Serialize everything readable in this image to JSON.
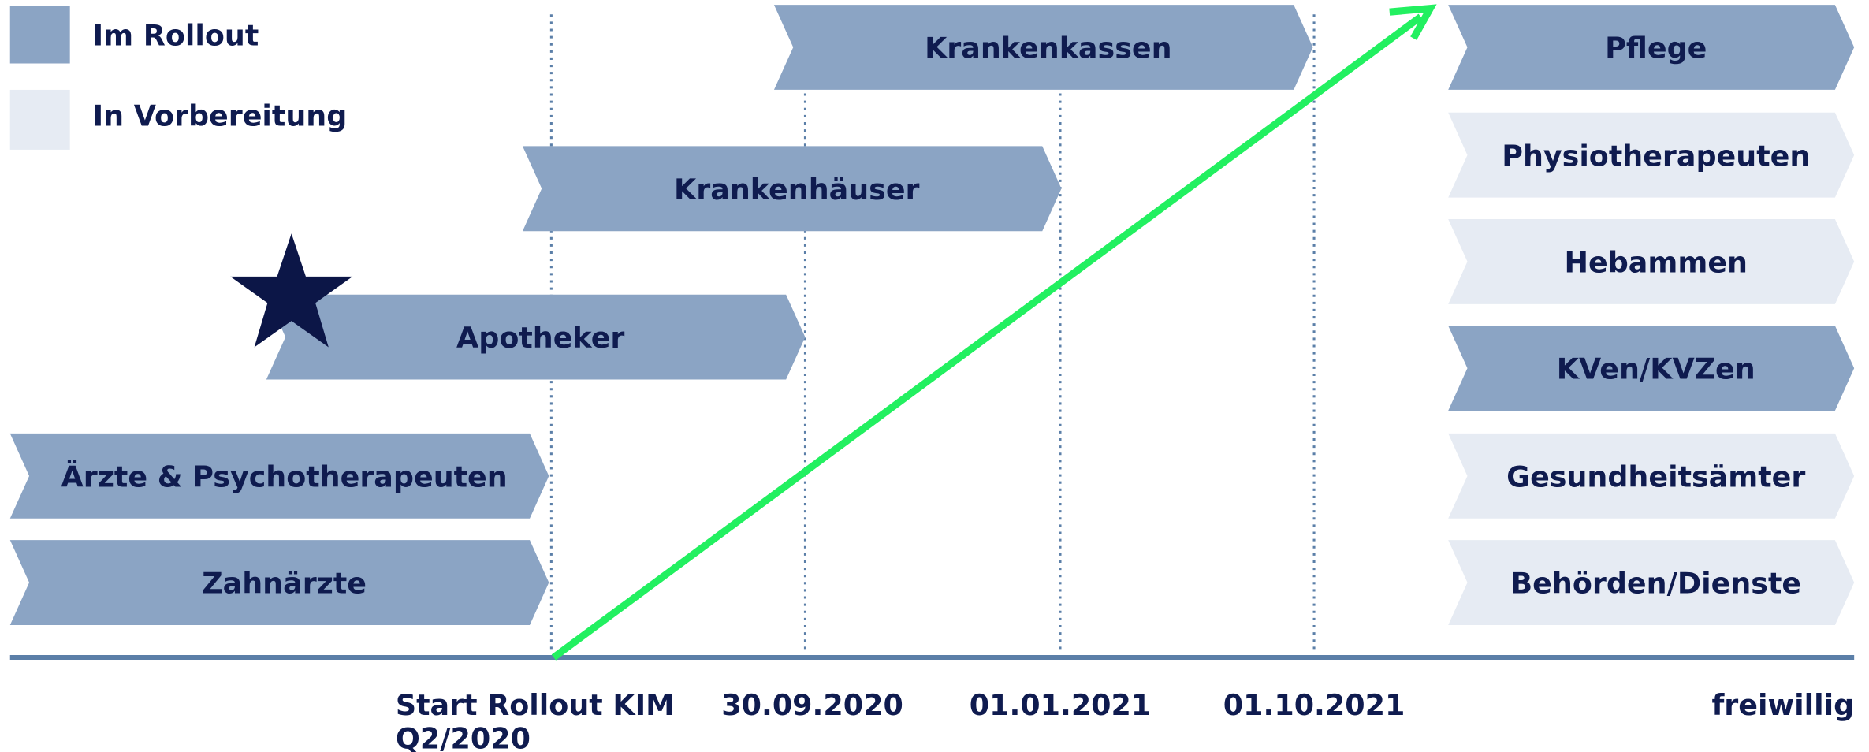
{
  "legend": [
    {
      "label": "Im Rollout"
    },
    {
      "label": "In Vorbereitung"
    }
  ],
  "timeline": [
    {
      "label": "Krankenkassen"
    },
    {
      "label": "Krankenhäuser"
    },
    {
      "label": "Apotheker"
    },
    {
      "label": "Ärzte & Psychotherapeuten"
    },
    {
      "label": "Zahnärzte"
    }
  ],
  "voluntary": [
    {
      "label": "Pflege"
    },
    {
      "label": "Physiotherapeuten"
    },
    {
      "label": "Hebammen"
    },
    {
      "label": "KVen/KVZen"
    },
    {
      "label": "Gesundheitsämter"
    },
    {
      "label": "Behörden/Dienste"
    }
  ],
  "axis": {
    "start": [
      "Start Rollout KIM",
      "Q2/2020"
    ],
    "dates": [
      "30.09.2020",
      "01.01.2021",
      "01.10.2021"
    ],
    "end": "freiwillig"
  }
}
